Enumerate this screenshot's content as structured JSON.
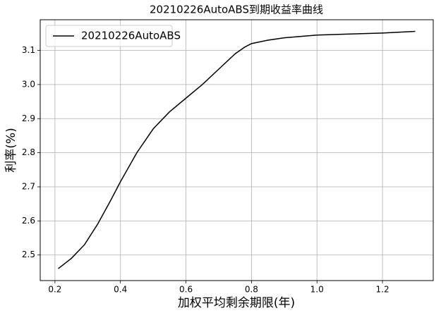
{
  "chart_data": {
    "type": "line",
    "title": "20210226AutoABS到期收益率曲线",
    "xlabel": "加权平均剩余期限(年)",
    "ylabel": "利率(%)",
    "x": [
      0.21,
      0.25,
      0.29,
      0.33,
      0.37,
      0.4,
      0.45,
      0.5,
      0.55,
      0.6,
      0.65,
      0.7,
      0.75,
      0.78,
      0.8,
      0.85,
      0.9,
      1.0,
      1.1,
      1.2,
      1.3
    ],
    "series": [
      {
        "name": "20210226AutoABS",
        "color": "#000000",
        "values": [
          2.46,
          2.49,
          2.53,
          2.59,
          2.66,
          2.715,
          2.8,
          2.87,
          2.92,
          2.96,
          3.0,
          3.045,
          3.09,
          3.11,
          3.12,
          3.13,
          3.137,
          3.145,
          3.148,
          3.151,
          3.156
        ]
      }
    ],
    "xlim": [
      0.155,
      1.355
    ],
    "ylim": [
      2.425,
      3.19
    ],
    "xticks": [
      0.2,
      0.4,
      0.6,
      0.8,
      {
        "value": 1,
        "label": "1.0"
      },
      1.2
    ],
    "yticks": [
      2.5,
      2.6,
      2.7,
      2.8,
      2.9,
      {
        "value": 3,
        "label": "3.0"
      },
      3.1
    ],
    "grid": true,
    "legend": "upper left"
  }
}
